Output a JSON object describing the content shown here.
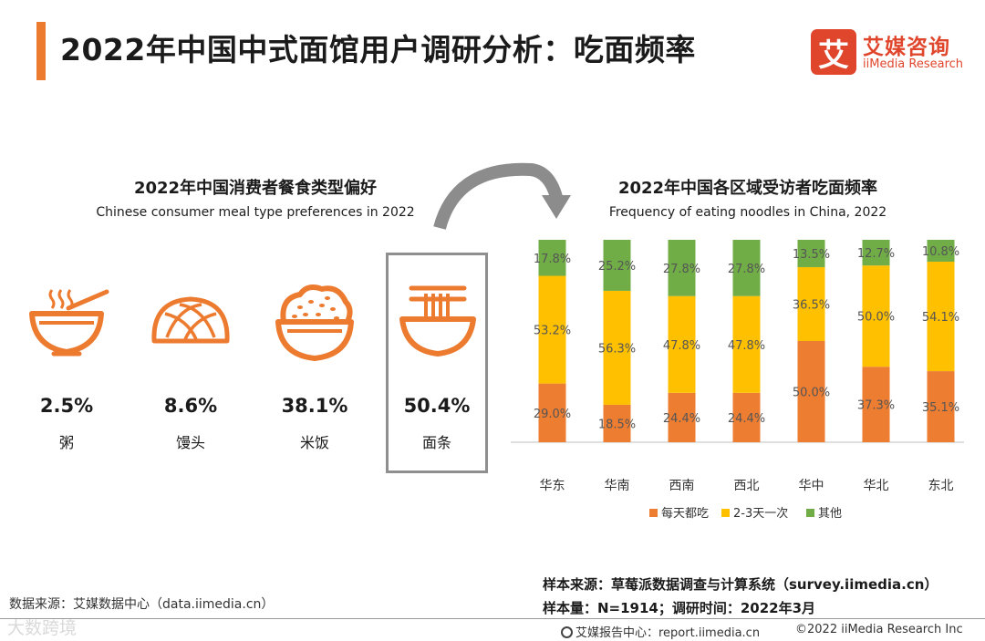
{
  "header": {
    "title": "2022年中国中式面馆用户调研分析：吃面频率",
    "logo_mark": "艾",
    "logo_cn": "艾媒咨询",
    "logo_en": "iiMedia Research"
  },
  "meal_section": {
    "title": "2022年中国消费者餐食类型偏好",
    "subtitle": "Chinese consumer meal type preferences in 2022",
    "items": [
      {
        "icon": "porridge-bowl-icon",
        "pct": "2.5%",
        "label": "粥"
      },
      {
        "icon": "steamed-bun-icon",
        "pct": "8.6%",
        "label": "馒头"
      },
      {
        "icon": "rice-bowl-icon",
        "pct": "38.1%",
        "label": "米饭"
      },
      {
        "icon": "noodle-bowl-icon",
        "pct": "50.4%",
        "label": "面条"
      }
    ]
  },
  "chart_data": {
    "type": "bar",
    "stacked": true,
    "percent": true,
    "title": "2022年中国各区域受访者吃面频率",
    "subtitle": "Frequency of eating noodles in China, 2022",
    "categories": [
      "华东",
      "华南",
      "西南",
      "西北",
      "华中",
      "华北",
      "东北"
    ],
    "series": [
      {
        "name": "每天都吃",
        "color": "#ed7d31",
        "values": [
          29.0,
          18.5,
          24.4,
          24.4,
          50.0,
          37.3,
          35.1
        ],
        "labels": [
          "29.0%",
          "18.5%",
          "24.4%",
          "24.4%",
          "50.0%",
          "37.3%",
          "35.1%"
        ]
      },
      {
        "name": "2-3天一次",
        "color": "#ffc000",
        "values": [
          53.2,
          56.3,
          47.8,
          47.8,
          36.5,
          50.0,
          54.1
        ],
        "labels": [
          "53.2%",
          "56.3%",
          "47.8%",
          "47.8%",
          "36.5%",
          "50.0%",
          "54.1%"
        ]
      },
      {
        "name": "其他",
        "color": "#70ad47",
        "values": [
          17.8,
          25.2,
          27.8,
          27.8,
          13.5,
          12.7,
          10.8
        ],
        "labels": [
          "17.8%",
          "25.2%",
          "27.8%",
          "27.8%",
          "13.5%",
          "12.7%",
          "10.8%"
        ]
      }
    ],
    "ylim": [
      0,
      100
    ],
    "legend": "bottom"
  },
  "footer": {
    "source_left": "数据来源：艾媒数据中心（data.iimedia.cn）",
    "sample_source": "样本来源：草莓派数据调查与计算系统（survey.iimedia.cn）",
    "sample_size": "样本量：N=1914；调研时间：2022年3月",
    "report_center": "艾媒报告中心：report.iimedia.cn",
    "copyright": "©2022 iiMedia Research Inc",
    "watermark": "大数跨境"
  }
}
